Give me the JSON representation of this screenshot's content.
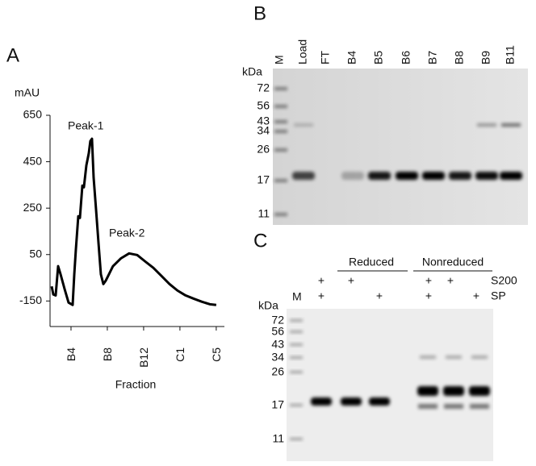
{
  "panels": {
    "a": "A",
    "b": "B",
    "c": "C"
  },
  "chart_data": {
    "type": "line",
    "y_label": "mAU",
    "x_label": "Fraction",
    "annotations": [
      "Peak-1",
      "Peak-2"
    ],
    "color": "#000000",
    "x": [
      1.87,
      2.05,
      2.31,
      2.58,
      2.85,
      3.29,
      3.73,
      4.18,
      4.36,
      4.53,
      4.8,
      4.98,
      5.25,
      5.42,
      5.69,
      5.96,
      6.13,
      6.31,
      6.49,
      6.76,
      7.02,
      7.29,
      7.56,
      7.82,
      8.18,
      8.62,
      9.51,
      10.4,
      11.29,
      12.18,
      13.07,
      13.96,
      14.85,
      15.73,
      16.62,
      17.51,
      18.4,
      19.29,
      20.0
    ],
    "values": [
      -87,
      -122,
      -126,
      0,
      -35,
      -98,
      -157,
      -167,
      -35,
      69,
      215,
      208,
      347,
      340,
      434,
      487,
      539,
      549,
      382,
      243,
      104,
      -35,
      -77,
      -63,
      -35,
      0,
      34,
      55,
      48,
      20,
      -7,
      -42,
      -77,
      -105,
      -126,
      -140,
      -153,
      -164,
      -167
    ],
    "xlim": [
      1.69,
      20.9
    ],
    "ylim": [
      -260,
      650
    ],
    "xticks": [
      {
        "value": 4,
        "label": "B4"
      },
      {
        "value": 8,
        "label": "B8"
      },
      {
        "value": 12,
        "label": "B12"
      },
      {
        "value": 16,
        "label": "C1"
      },
      {
        "value": 20,
        "label": "C5"
      }
    ],
    "yticks": [
      650,
      450,
      250,
      50,
      -150
    ]
  },
  "gel_b": {
    "unit": "kDa",
    "lanes": [
      "M",
      "Load",
      "FT",
      "B4",
      "B5",
      "B6",
      "B7",
      "B8",
      "B9",
      "B11"
    ],
    "markers": [
      72,
      56,
      43,
      34,
      26,
      17,
      11
    ]
  },
  "gel_c": {
    "unit": "kDa",
    "marker_lane": "M",
    "groups": [
      "Reduced",
      "Nonreduced"
    ],
    "conditions": [
      "S200",
      "SP"
    ],
    "s200_signs": [
      "+",
      "+",
      "+",
      "+"
    ],
    "sp_signs": [
      "+",
      "+",
      "+",
      "+"
    ],
    "markers": [
      72,
      56,
      43,
      34,
      26,
      17,
      11
    ]
  }
}
